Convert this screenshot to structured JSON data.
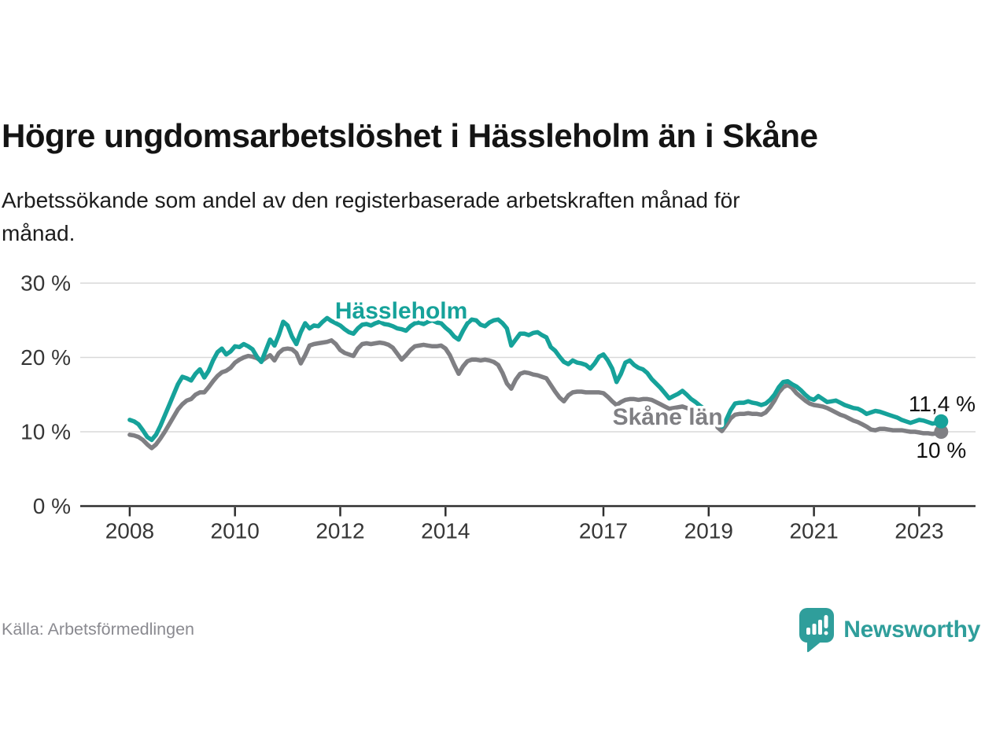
{
  "title": "Högre ungdomsarbetslöshet i Hässleholm än i Skåne",
  "subtitle": "Arbetssökande som andel av den registerbaserade arbetskraften månad för\nmånad.",
  "source": "Källa: Arbetsförmedlingen",
  "logo": {
    "text": "Newsworthy"
  },
  "colors": {
    "hassleholm": "#16a29a",
    "skane": "#7f7f83",
    "grid": "#d9d9d9",
    "axis": "#2e2e2e",
    "tick_text": "#363636",
    "end_label_text": "#111111",
    "source_text": "#8a8a90",
    "logo_teal": "#2f9e9b"
  },
  "chart_data": {
    "type": "line",
    "title": "Högre ungdomsarbetslöshet i Hässleholm än i Skåne",
    "xlabel": "",
    "ylabel": "",
    "xlim": [
      2007.06,
      2024.07
    ],
    "ylim": [
      0,
      30
    ],
    "grid": true,
    "legend_position": "inline-labels",
    "x_ticks": [
      {
        "value": 2008,
        "label": "2008"
      },
      {
        "value": 2010,
        "label": "2010"
      },
      {
        "value": 2012,
        "label": "2012"
      },
      {
        "value": 2014,
        "label": "2014"
      },
      {
        "value": 2017,
        "label": "2017"
      },
      {
        "value": 2019,
        "label": "2019"
      },
      {
        "value": 2021,
        "label": "2021"
      },
      {
        "value": 2023,
        "label": "2023"
      }
    ],
    "y_ticks": [
      {
        "value": 0,
        "label": "0 %"
      },
      {
        "value": 10,
        "label": "10 %"
      },
      {
        "value": 20,
        "label": "20 %"
      },
      {
        "value": 30,
        "label": "30 %"
      }
    ],
    "series": [
      {
        "name": "Skåne län",
        "color_key": "skane",
        "end_label": "10 %",
        "end_value": 10.0,
        "segments": [
          {
            "start": 2008.0,
            "step_years": 0.083333,
            "values": [
              9.6,
              9.5,
              9.3,
              8.9,
              8.3,
              7.8,
              8.3,
              9.1,
              10.0,
              11.0,
              12.0,
              13.0,
              13.7,
              14.2,
              14.4,
              15.0,
              15.3,
              15.3,
              16.0,
              16.8,
              17.5,
              18.0,
              18.2,
              18.6,
              19.3,
              19.7,
              20.0,
              20.2,
              20.1,
              19.9,
              19.5,
              19.9,
              20.3,
              19.6,
              20.6,
              21.1,
              21.2,
              21.1,
              20.6,
              19.2,
              20.3,
              21.6,
              21.8,
              21.9,
              22.0,
              22.1,
              22.3,
              21.8,
              21.0,
              20.6,
              20.4,
              20.2,
              21.2,
              21.8,
              21.9,
              21.8,
              21.9,
              22.0,
              21.9,
              21.7,
              21.3,
              20.5,
              19.7,
              20.3,
              21.0,
              21.5,
              21.6,
              21.7,
              21.6,
              21.5,
              21.5,
              21.6,
              21.2,
              20.3,
              19.0,
              17.8,
              18.8,
              19.5,
              19.7,
              19.7,
              19.6,
              19.7,
              19.6,
              19.4,
              19.0,
              17.9,
              16.5,
              15.8,
              17.0,
              17.8,
              18.0,
              17.9,
              17.7,
              17.6,
              17.4,
              17.2,
              16.3,
              15.4,
              14.6,
              14.1,
              14.9,
              15.3,
              15.4,
              15.4,
              15.3,
              15.3,
              15.3,
              15.3,
              15.2,
              14.7,
              14.1,
              13.6,
              14.0,
              14.3,
              14.4,
              14.4,
              14.3,
              14.4,
              14.4,
              14.3,
              14.0,
              13.7,
              13.4,
              13.1,
              13.2,
              13.3,
              13.4,
              13.2,
              13.0,
              12.9,
              12.8,
              12.7
            ]
          },
          {
            "start": 2019.167,
            "step_years": 0.083333,
            "values": [
              10.6,
              10.1,
              10.9,
              11.8,
              12.3,
              12.4,
              12.4,
              12.5,
              12.4,
              12.4,
              12.3,
              12.6,
              13.3,
              14.2,
              15.3,
              16.0,
              16.3,
              15.9,
              15.2,
              14.7,
              14.2,
              13.8,
              13.6,
              13.5,
              13.4,
              13.2,
              12.9,
              12.6,
              12.3,
              12.1,
              11.8,
              11.5,
              11.3,
              11.0,
              10.7,
              10.3,
              10.2,
              10.4,
              10.4,
              10.3,
              10.2,
              10.2,
              10.2,
              10.1,
              10.0,
              10.0,
              9.9,
              9.8,
              9.8,
              9.7,
              9.8,
              10.0
            ]
          }
        ]
      },
      {
        "name": "Hässleholm",
        "color_key": "hassleholm",
        "end_label": "11,4 %",
        "end_value": 11.4,
        "segments": [
          {
            "start": 2008.0,
            "step_years": 0.083333,
            "values": [
              11.6,
              11.4,
              11.0,
              10.2,
              9.3,
              8.9,
              9.6,
              10.8,
              12.2,
              13.6,
              15.0,
              16.4,
              17.4,
              17.2,
              16.9,
              17.8,
              18.4,
              17.3,
              18.2,
              19.6,
              20.7,
              21.2,
              20.4,
              20.8,
              21.5,
              21.4,
              21.8,
              21.5,
              21.1,
              20.1,
              19.4,
              20.9,
              22.4,
              21.6,
              23.0,
              24.8,
              24.3,
              22.8,
              21.8,
              23.4,
              24.6,
              23.9,
              24.3,
              24.2,
              24.8,
              25.3,
              24.9,
              24.6,
              24.3,
              23.8,
              23.4,
              23.2,
              23.9,
              24.4,
              24.5,
              24.3,
              24.6,
              24.8,
              24.5,
              24.4,
              24.2,
              23.9,
              23.8,
              23.6,
              24.2,
              24.6,
              24.7,
              24.5,
              24.8,
              25.0,
              24.7,
              24.6,
              24.0,
              23.5,
              22.8,
              22.4,
              23.6,
              24.6,
              25.1,
              25.0,
              24.4,
              24.2,
              24.7,
              25.0,
              25.1,
              24.6,
              23.9,
              21.6,
              22.4,
              23.2,
              23.2,
              23.0,
              23.3,
              23.4,
              23.0,
              22.7,
              21.4,
              20.9,
              20.1,
              19.4,
              19.1,
              19.6,
              19.3,
              19.2,
              19.0,
              18.5,
              19.2,
              20.1,
              20.4,
              19.6,
              18.5,
              16.7,
              17.8,
              19.3,
              19.6,
              19.0,
              18.6,
              18.4,
              17.9,
              17.1,
              16.5,
              15.9,
              15.2,
              14.5,
              14.8,
              15.1,
              15.5,
              15.0,
              14.4,
              14.0,
              13.5,
              13.1
            ]
          },
          {
            "start": 2019.167,
            "step_years": 0.083333,
            "values": [
              11.3,
              10.7,
              11.6,
              12.9,
              13.8,
              13.9,
              13.9,
              14.1,
              13.9,
              13.8,
              13.6,
              13.8,
              14.3,
              15.0,
              16.0,
              16.7,
              16.8,
              16.4,
              16.1,
              15.6,
              15.0,
              14.5,
              14.3,
              14.8,
              14.4,
              14.0,
              14.1,
              14.2,
              13.9,
              13.6,
              13.4,
              13.2,
              13.1,
              12.8,
              12.4,
              12.6,
              12.8,
              12.7,
              12.5,
              12.3,
              12.1,
              11.9,
              11.6,
              11.4,
              11.2,
              11.4,
              11.6,
              11.5,
              11.3,
              11.1,
              11.2,
              11.4
            ]
          }
        ]
      }
    ],
    "series_labels": [
      {
        "text": "Hässleholm",
        "x": 2013.16,
        "y": 26.3,
        "color_key": "hassleholm"
      },
      {
        "text": "Skåne län",
        "x": 2018.22,
        "y": 12.0,
        "color_key": "skane"
      }
    ]
  }
}
